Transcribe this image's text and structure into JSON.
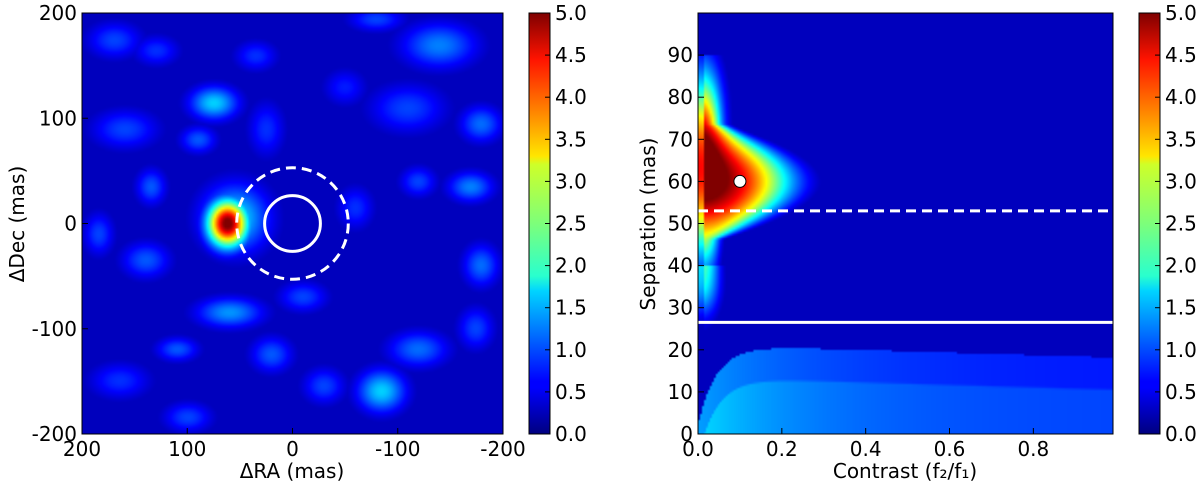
{
  "chart_data": [
    {
      "type": "heatmap",
      "xlabel": "ΔRA (mas)",
      "ylabel": "ΔDec (mas)",
      "xlim": [
        200,
        -200
      ],
      "ylim": [
        -200,
        200
      ],
      "x_ticks": [
        200,
        100,
        0,
        -100,
        -200
      ],
      "y_ticks": [
        -200,
        -100,
        0,
        100,
        200
      ],
      "x_tick_labels": [
        "200",
        "100",
        "0",
        "-100",
        "-200"
      ],
      "y_tick_labels": [
        "-200",
        "-100",
        "0",
        "100",
        "200"
      ],
      "background_value": 0.3,
      "peak": {
        "x": 60,
        "y": 0,
        "value": 5.0
      },
      "blobs": [
        {
          "x": 62,
          "y": 0,
          "sx": 13,
          "sy": 15,
          "value": 5.0
        },
        {
          "x": 55,
          "y": 5,
          "sx": 22,
          "sy": 22,
          "value": 1.6
        },
        {
          "x": 75,
          "y": 115,
          "sx": 16,
          "sy": 11,
          "value": 1.5
        },
        {
          "x": 90,
          "y": 80,
          "sx": 12,
          "sy": 9,
          "value": 0.9
        },
        {
          "x": 135,
          "y": 35,
          "sx": 10,
          "sy": 12,
          "value": 0.9
        },
        {
          "x": 160,
          "y": 90,
          "sx": 22,
          "sy": 13,
          "value": 0.8
        },
        {
          "x": 170,
          "y": 175,
          "sx": 18,
          "sy": 12,
          "value": 0.8
        },
        {
          "x": 130,
          "y": 165,
          "sx": 15,
          "sy": 10,
          "value": 0.7
        },
        {
          "x": 25,
          "y": 90,
          "sx": 12,
          "sy": 18,
          "value": 0.7
        },
        {
          "x": 35,
          "y": 160,
          "sx": 14,
          "sy": 10,
          "value": 0.7
        },
        {
          "x": 140,
          "y": -35,
          "sx": 16,
          "sy": 12,
          "value": 0.9
        },
        {
          "x": 60,
          "y": -85,
          "sx": 22,
          "sy": 10,
          "value": 1.2
        },
        {
          "x": 110,
          "y": -120,
          "sx": 14,
          "sy": 8,
          "value": 0.9
        },
        {
          "x": 165,
          "y": -150,
          "sx": 20,
          "sy": 12,
          "value": 0.7
        },
        {
          "x": 100,
          "y": -185,
          "sx": 16,
          "sy": 10,
          "value": 0.8
        },
        {
          "x": 20,
          "y": -125,
          "sx": 14,
          "sy": 12,
          "value": 0.9
        },
        {
          "x": -10,
          "y": -70,
          "sx": 16,
          "sy": 10,
          "value": 0.8
        },
        {
          "x": -30,
          "y": -155,
          "sx": 14,
          "sy": 12,
          "value": 0.8
        },
        {
          "x": -120,
          "y": -120,
          "sx": 20,
          "sy": 12,
          "value": 1.0
        },
        {
          "x": -85,
          "y": -160,
          "sx": 16,
          "sy": 14,
          "value": 1.5
        },
        {
          "x": -180,
          "y": -40,
          "sx": 12,
          "sy": 14,
          "value": 1.0
        },
        {
          "x": -175,
          "y": -100,
          "sx": 12,
          "sy": 14,
          "value": 0.8
        },
        {
          "x": -170,
          "y": 35,
          "sx": 15,
          "sy": 10,
          "value": 1.1
        },
        {
          "x": -180,
          "y": 95,
          "sx": 14,
          "sy": 12,
          "value": 1.0
        },
        {
          "x": -140,
          "y": 170,
          "sx": 25,
          "sy": 15,
          "value": 1.1
        },
        {
          "x": -110,
          "y": 110,
          "sx": 25,
          "sy": 16,
          "value": 0.8
        },
        {
          "x": -120,
          "y": 40,
          "sx": 12,
          "sy": 10,
          "value": 0.8
        },
        {
          "x": -60,
          "y": 15,
          "sx": 12,
          "sy": 14,
          "value": 0.7
        },
        {
          "x": -50,
          "y": 130,
          "sx": 14,
          "sy": 12,
          "value": 0.6
        },
        {
          "x": -80,
          "y": 195,
          "sx": 18,
          "sy": 8,
          "value": 0.8
        },
        {
          "x": 185,
          "y": -10,
          "sx": 10,
          "sy": 14,
          "value": 0.8
        }
      ],
      "circles": [
        {
          "radius": 26.5,
          "style": "solid",
          "color": "#ffffff"
        },
        {
          "radius": 53,
          "style": "dashed",
          "color": "#ffffff"
        }
      ],
      "colorbar": {
        "min": 0.0,
        "max": 5.0,
        "tick_labels": [
          "0.0",
          "0.5",
          "1.0",
          "1.5",
          "2.0",
          "2.5",
          "3.0",
          "3.5",
          "4.0",
          "4.5",
          "5.0"
        ]
      }
    },
    {
      "type": "heatmap",
      "xlabel": "Contrast (f₂/f₁)",
      "ylabel": "Separation (mas)",
      "xlim": [
        0.0,
        0.99
      ],
      "ylim": [
        0,
        100
      ],
      "x_ticks": [
        0.0,
        0.2,
        0.4,
        0.6,
        0.8
      ],
      "y_ticks": [
        0,
        10,
        20,
        30,
        40,
        50,
        60,
        70,
        80,
        90
      ],
      "x_tick_labels": [
        "0.0",
        "0.2",
        "0.4",
        "0.6",
        "0.8"
      ],
      "y_tick_labels": [
        "0",
        "10",
        "20",
        "30",
        "40",
        "50",
        "60",
        "70",
        "80",
        "90"
      ],
      "background_value": 0.3,
      "best_fit": {
        "contrast": 0.1,
        "separation": 60,
        "value": 5.0
      },
      "lines": [
        {
          "separation": 26.5,
          "style": "solid",
          "color": "#ffffff"
        },
        {
          "separation": 53,
          "style": "dashed",
          "color": "#ffffff"
        }
      ],
      "colorbar": {
        "min": 0.0,
        "max": 5.0,
        "tick_labels": [
          "0.0",
          "0.5",
          "1.0",
          "1.5",
          "2.0",
          "2.5",
          "3.0",
          "3.5",
          "4.0",
          "4.5",
          "5.0"
        ]
      }
    }
  ]
}
